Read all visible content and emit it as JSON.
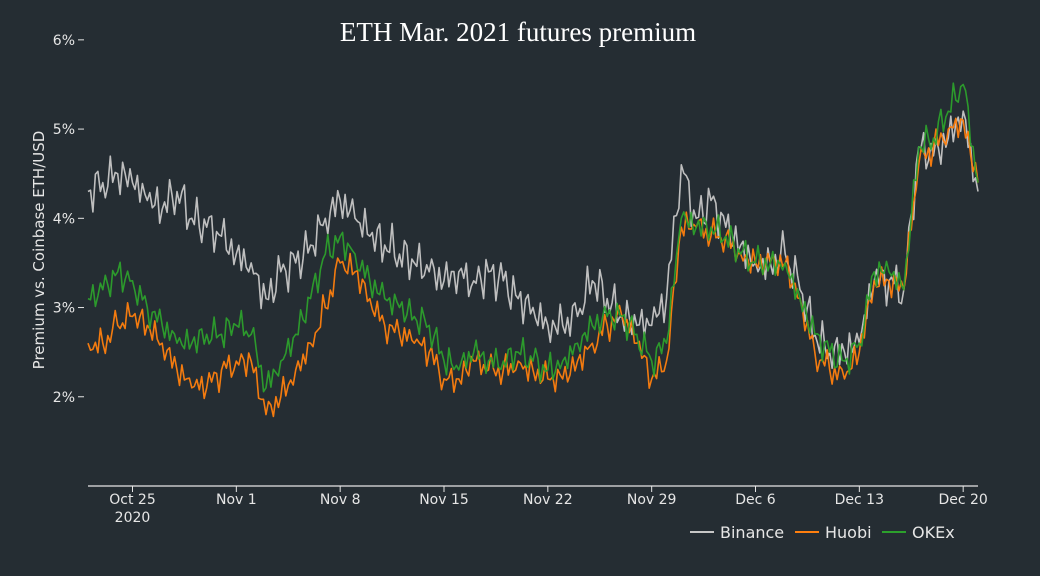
{
  "chart_data": {
    "type": "line",
    "title": "ETH Mar. 2021 futures premium",
    "ylabel": "Premium vs. Coinbase ETH/USD",
    "xlabel": "",
    "x_start": "2020-10-22",
    "x_end": "2020-12-21",
    "ylim": [
      0.01,
      0.062
    ],
    "yticks": [
      0.02,
      0.03,
      0.04,
      0.05,
      0.06
    ],
    "ytick_labels": [
      "2%",
      "3%",
      "4%",
      "5%",
      "6%"
    ],
    "xticks": [
      "2020-10-25",
      "2020-11-01",
      "2020-11-08",
      "2020-11-15",
      "2020-11-22",
      "2020-11-29",
      "2020-12-06",
      "2020-12-13",
      "2020-12-20"
    ],
    "xtick_labels": [
      "Oct 25",
      "Nov 1",
      "Nov 8",
      "Nov 15",
      "Nov 22",
      "Nov 29",
      "Dec 6",
      "Dec 13",
      "Dec 20"
    ],
    "xtick_year": "2020",
    "legend_position": "bottom-right",
    "grid": false,
    "series": [
      {
        "name": "Binance",
        "color": "#c7c7c7",
        "x": [
          "2020-10-22",
          "2020-10-23",
          "2020-10-24",
          "2020-10-25",
          "2020-10-26",
          "2020-10-27",
          "2020-10-28",
          "2020-10-29",
          "2020-10-30",
          "2020-10-31",
          "2020-11-01",
          "2020-11-02",
          "2020-11-03",
          "2020-11-04",
          "2020-11-05",
          "2020-11-06",
          "2020-11-07",
          "2020-11-08",
          "2020-11-09",
          "2020-11-10",
          "2020-11-11",
          "2020-11-12",
          "2020-11-13",
          "2020-11-14",
          "2020-11-15",
          "2020-11-16",
          "2020-11-17",
          "2020-11-18",
          "2020-11-19",
          "2020-11-20",
          "2020-11-21",
          "2020-11-22",
          "2020-11-23",
          "2020-11-24",
          "2020-11-25",
          "2020-11-26",
          "2020-11-27",
          "2020-11-28",
          "2020-11-29",
          "2020-11-30",
          "2020-12-01",
          "2020-12-02",
          "2020-12-03",
          "2020-12-04",
          "2020-12-05",
          "2020-12-06",
          "2020-12-07",
          "2020-12-08",
          "2020-12-09",
          "2020-12-10",
          "2020-12-11",
          "2020-12-12",
          "2020-12-13",
          "2020-12-14",
          "2020-12-15",
          "2020-12-16",
          "2020-12-17",
          "2020-12-18",
          "2020-12-19",
          "2020-12-20",
          "2020-12-21"
        ],
        "values": [
          0.043,
          0.044,
          0.045,
          0.044,
          0.042,
          0.041,
          0.043,
          0.04,
          0.039,
          0.038,
          0.036,
          0.035,
          0.031,
          0.034,
          0.035,
          0.037,
          0.04,
          0.042,
          0.04,
          0.038,
          0.037,
          0.036,
          0.035,
          0.034,
          0.033,
          0.034,
          0.033,
          0.034,
          0.033,
          0.031,
          0.03,
          0.028,
          0.028,
          0.029,
          0.033,
          0.031,
          0.029,
          0.028,
          0.028,
          0.031,
          0.046,
          0.04,
          0.042,
          0.039,
          0.037,
          0.035,
          0.035,
          0.036,
          0.032,
          0.027,
          0.025,
          0.025,
          0.026,
          0.033,
          0.033,
          0.032,
          0.048,
          0.047,
          0.049,
          0.052,
          0.043
        ]
      },
      {
        "name": "Huobi",
        "color": "#ff7f0e",
        "x": [
          "2020-10-22",
          "2020-10-23",
          "2020-10-24",
          "2020-10-25",
          "2020-10-26",
          "2020-10-27",
          "2020-10-28",
          "2020-10-29",
          "2020-10-30",
          "2020-10-31",
          "2020-11-01",
          "2020-11-02",
          "2020-11-03",
          "2020-11-04",
          "2020-11-05",
          "2020-11-06",
          "2020-11-07",
          "2020-11-08",
          "2020-11-09",
          "2020-11-10",
          "2020-11-11",
          "2020-11-12",
          "2020-11-13",
          "2020-11-14",
          "2020-11-15",
          "2020-11-16",
          "2020-11-17",
          "2020-11-18",
          "2020-11-19",
          "2020-11-20",
          "2020-11-21",
          "2020-11-22",
          "2020-11-23",
          "2020-11-24",
          "2020-11-25",
          "2020-11-26",
          "2020-11-27",
          "2020-11-28",
          "2020-11-29",
          "2020-11-30",
          "2020-12-01",
          "2020-12-02",
          "2020-12-03",
          "2020-12-04",
          "2020-12-05",
          "2020-12-06",
          "2020-12-07",
          "2020-12-08",
          "2020-12-09",
          "2020-12-10",
          "2020-12-11",
          "2020-12-12",
          "2020-12-13",
          "2020-12-14",
          "2020-12-15",
          "2020-12-16",
          "2020-12-17",
          "2020-12-18",
          "2020-12-19",
          "2020-12-20",
          "2020-12-21"
        ],
        "values": [
          0.026,
          0.026,
          0.028,
          0.029,
          0.028,
          0.026,
          0.023,
          0.021,
          0.021,
          0.023,
          0.024,
          0.024,
          0.018,
          0.02,
          0.023,
          0.026,
          0.03,
          0.035,
          0.034,
          0.031,
          0.028,
          0.027,
          0.026,
          0.025,
          0.022,
          0.022,
          0.024,
          0.023,
          0.023,
          0.024,
          0.023,
          0.022,
          0.022,
          0.024,
          0.026,
          0.028,
          0.029,
          0.026,
          0.022,
          0.024,
          0.039,
          0.039,
          0.038,
          0.038,
          0.036,
          0.035,
          0.035,
          0.035,
          0.031,
          0.025,
          0.023,
          0.022,
          0.025,
          0.033,
          0.033,
          0.032,
          0.046,
          0.048,
          0.05,
          0.051,
          0.044
        ]
      },
      {
        "name": "OKEx",
        "color": "#2ca02c",
        "x": [
          "2020-10-22",
          "2020-10-23",
          "2020-10-24",
          "2020-10-25",
          "2020-10-26",
          "2020-10-27",
          "2020-10-28",
          "2020-10-29",
          "2020-10-30",
          "2020-10-31",
          "2020-11-01",
          "2020-11-02",
          "2020-11-03",
          "2020-11-04",
          "2020-11-05",
          "2020-11-06",
          "2020-11-07",
          "2020-11-08",
          "2020-11-09",
          "2020-11-10",
          "2020-11-11",
          "2020-11-12",
          "2020-11-13",
          "2020-11-14",
          "2020-11-15",
          "2020-11-16",
          "2020-11-17",
          "2020-11-18",
          "2020-11-19",
          "2020-11-20",
          "2020-11-21",
          "2020-11-22",
          "2020-11-23",
          "2020-11-24",
          "2020-11-25",
          "2020-11-26",
          "2020-11-27",
          "2020-11-28",
          "2020-11-29",
          "2020-11-30",
          "2020-12-01",
          "2020-12-02",
          "2020-12-03",
          "2020-12-04",
          "2020-12-05",
          "2020-12-06",
          "2020-12-07",
          "2020-12-08",
          "2020-12-09",
          "2020-12-10",
          "2020-12-11",
          "2020-12-12",
          "2020-12-13",
          "2020-12-14",
          "2020-12-15",
          "2020-12-16",
          "2020-12-17",
          "2020-12-18",
          "2020-12-19",
          "2020-12-20",
          "2020-12-21"
        ],
        "values": [
          0.031,
          0.032,
          0.034,
          0.033,
          0.03,
          0.028,
          0.026,
          0.026,
          0.027,
          0.027,
          0.028,
          0.027,
          0.021,
          0.024,
          0.027,
          0.031,
          0.036,
          0.038,
          0.036,
          0.033,
          0.031,
          0.03,
          0.029,
          0.028,
          0.024,
          0.023,
          0.025,
          0.024,
          0.024,
          0.025,
          0.024,
          0.023,
          0.024,
          0.026,
          0.028,
          0.029,
          0.029,
          0.027,
          0.024,
          0.026,
          0.04,
          0.039,
          0.039,
          0.038,
          0.036,
          0.035,
          0.035,
          0.035,
          0.031,
          0.027,
          0.025,
          0.024,
          0.026,
          0.034,
          0.034,
          0.032,
          0.048,
          0.049,
          0.052,
          0.055,
          0.044
        ]
      }
    ]
  }
}
